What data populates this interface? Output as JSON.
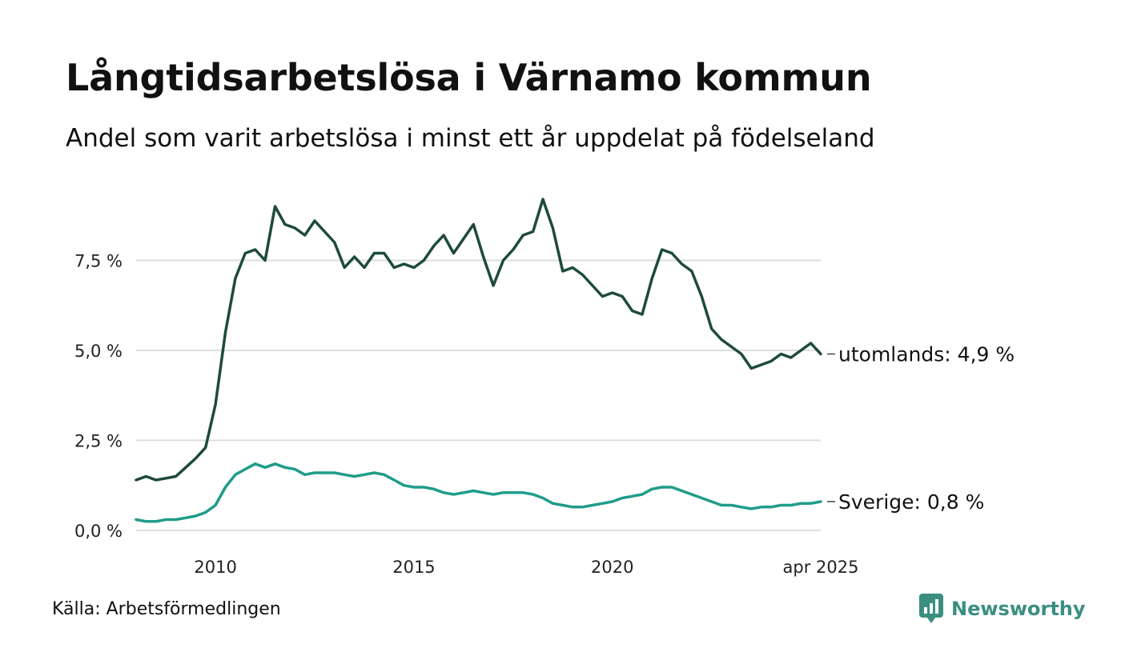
{
  "header": {
    "title": "Långtidsarbetslösa i Värnamo kommun",
    "subtitle": "Andel som varit arbetslösa i minst ett år uppdelat på födelseland"
  },
  "footer": {
    "source": "Källa: Arbetsförmedlingen",
    "brand": "Newsworthy"
  },
  "chart_data": {
    "type": "line",
    "title": "Långtidsarbetslösa i Värnamo kommun",
    "subtitle": "Andel som varit arbetslösa i minst ett år uppdelat på födelseland",
    "y_ticks": [
      {
        "value": 0.0,
        "label": "0,0 %"
      },
      {
        "value": 2.5,
        "label": "2,5 %"
      },
      {
        "value": 5.0,
        "label": "5,0 %"
      },
      {
        "value": 7.5,
        "label": "7,5 %"
      }
    ],
    "x_ticks": [
      {
        "value": 2010.0,
        "label": "2010"
      },
      {
        "value": 2015.0,
        "label": "2015"
      },
      {
        "value": 2020.0,
        "label": "2020"
      },
      {
        "value": 2025.25,
        "label": "apr 2025"
      }
    ],
    "xlim": [
      2008.0,
      2025.25
    ],
    "ylim": [
      0,
      9.4
    ],
    "grid": true,
    "legend": "end-labels",
    "series": [
      {
        "name": "utomlands",
        "end_label": "utomlands: 4,9 %",
        "color": "#1e4a3e",
        "points": [
          [
            2008.0,
            1.4
          ],
          [
            2008.25,
            1.5
          ],
          [
            2008.5,
            1.4
          ],
          [
            2008.75,
            1.45
          ],
          [
            2009.0,
            1.5
          ],
          [
            2009.25,
            1.75
          ],
          [
            2009.5,
            2.0
          ],
          [
            2009.75,
            2.3
          ],
          [
            2010.0,
            3.5
          ],
          [
            2010.25,
            5.5
          ],
          [
            2010.5,
            7.0
          ],
          [
            2010.75,
            7.7
          ],
          [
            2011.0,
            7.8
          ],
          [
            2011.25,
            7.5
          ],
          [
            2011.5,
            9.0
          ],
          [
            2011.75,
            8.5
          ],
          [
            2012.0,
            8.4
          ],
          [
            2012.25,
            8.2
          ],
          [
            2012.5,
            8.6
          ],
          [
            2012.75,
            8.3
          ],
          [
            2013.0,
            8.0
          ],
          [
            2013.25,
            7.3
          ],
          [
            2013.5,
            7.6
          ],
          [
            2013.75,
            7.3
          ],
          [
            2014.0,
            7.7
          ],
          [
            2014.25,
            7.7
          ],
          [
            2014.5,
            7.3
          ],
          [
            2014.75,
            7.4
          ],
          [
            2015.0,
            7.3
          ],
          [
            2015.25,
            7.5
          ],
          [
            2015.5,
            7.9
          ],
          [
            2015.75,
            8.2
          ],
          [
            2016.0,
            7.7
          ],
          [
            2016.25,
            8.1
          ],
          [
            2016.5,
            8.5
          ],
          [
            2016.75,
            7.6
          ],
          [
            2017.0,
            6.8
          ],
          [
            2017.25,
            7.5
          ],
          [
            2017.5,
            7.8
          ],
          [
            2017.75,
            8.2
          ],
          [
            2018.0,
            8.3
          ],
          [
            2018.25,
            9.2
          ],
          [
            2018.5,
            8.4
          ],
          [
            2018.75,
            7.2
          ],
          [
            2019.0,
            7.3
          ],
          [
            2019.25,
            7.1
          ],
          [
            2019.5,
            6.8
          ],
          [
            2019.75,
            6.5
          ],
          [
            2020.0,
            6.6
          ],
          [
            2020.25,
            6.5
          ],
          [
            2020.5,
            6.1
          ],
          [
            2020.75,
            6.0
          ],
          [
            2021.0,
            7.0
          ],
          [
            2021.25,
            7.8
          ],
          [
            2021.5,
            7.7
          ],
          [
            2021.75,
            7.4
          ],
          [
            2022.0,
            7.2
          ],
          [
            2022.25,
            6.5
          ],
          [
            2022.5,
            5.6
          ],
          [
            2022.75,
            5.3
          ],
          [
            2023.0,
            5.1
          ],
          [
            2023.25,
            4.9
          ],
          [
            2023.5,
            4.5
          ],
          [
            2023.75,
            4.6
          ],
          [
            2024.0,
            4.7
          ],
          [
            2024.25,
            4.9
          ],
          [
            2024.5,
            4.8
          ],
          [
            2024.75,
            5.0
          ],
          [
            2025.0,
            5.2
          ],
          [
            2025.25,
            4.9
          ]
        ]
      },
      {
        "name": "Sverige",
        "end_label": "Sverige: 0,8 %",
        "color": "#1f9c8a",
        "points": [
          [
            2008.0,
            0.3
          ],
          [
            2008.25,
            0.25
          ],
          [
            2008.5,
            0.25
          ],
          [
            2008.75,
            0.3
          ],
          [
            2009.0,
            0.3
          ],
          [
            2009.25,
            0.35
          ],
          [
            2009.5,
            0.4
          ],
          [
            2009.75,
            0.5
          ],
          [
            2010.0,
            0.7
          ],
          [
            2010.25,
            1.2
          ],
          [
            2010.5,
            1.55
          ],
          [
            2010.75,
            1.7
          ],
          [
            2011.0,
            1.85
          ],
          [
            2011.25,
            1.75
          ],
          [
            2011.5,
            1.85
          ],
          [
            2011.75,
            1.75
          ],
          [
            2012.0,
            1.7
          ],
          [
            2012.25,
            1.55
          ],
          [
            2012.5,
            1.6
          ],
          [
            2012.75,
            1.6
          ],
          [
            2013.0,
            1.6
          ],
          [
            2013.25,
            1.55
          ],
          [
            2013.5,
            1.5
          ],
          [
            2013.75,
            1.55
          ],
          [
            2014.0,
            1.6
          ],
          [
            2014.25,
            1.55
          ],
          [
            2014.5,
            1.4
          ],
          [
            2014.75,
            1.25
          ],
          [
            2015.0,
            1.2
          ],
          [
            2015.25,
            1.2
          ],
          [
            2015.5,
            1.15
          ],
          [
            2015.75,
            1.05
          ],
          [
            2016.0,
            1.0
          ],
          [
            2016.25,
            1.05
          ],
          [
            2016.5,
            1.1
          ],
          [
            2016.75,
            1.05
          ],
          [
            2017.0,
            1.0
          ],
          [
            2017.25,
            1.05
          ],
          [
            2017.5,
            1.05
          ],
          [
            2017.75,
            1.05
          ],
          [
            2018.0,
            1.0
          ],
          [
            2018.25,
            0.9
          ],
          [
            2018.5,
            0.75
          ],
          [
            2018.75,
            0.7
          ],
          [
            2019.0,
            0.65
          ],
          [
            2019.25,
            0.65
          ],
          [
            2019.5,
            0.7
          ],
          [
            2019.75,
            0.75
          ],
          [
            2020.0,
            0.8
          ],
          [
            2020.25,
            0.9
          ],
          [
            2020.5,
            0.95
          ],
          [
            2020.75,
            1.0
          ],
          [
            2021.0,
            1.15
          ],
          [
            2021.25,
            1.2
          ],
          [
            2021.5,
            1.2
          ],
          [
            2021.75,
            1.1
          ],
          [
            2022.0,
            1.0
          ],
          [
            2022.25,
            0.9
          ],
          [
            2022.5,
            0.8
          ],
          [
            2022.75,
            0.7
          ],
          [
            2023.0,
            0.7
          ],
          [
            2023.25,
            0.65
          ],
          [
            2023.5,
            0.6
          ],
          [
            2023.75,
            0.65
          ],
          [
            2024.0,
            0.65
          ],
          [
            2024.25,
            0.7
          ],
          [
            2024.5,
            0.7
          ],
          [
            2024.75,
            0.75
          ],
          [
            2025.0,
            0.75
          ],
          [
            2025.25,
            0.8
          ]
        ]
      }
    ]
  }
}
